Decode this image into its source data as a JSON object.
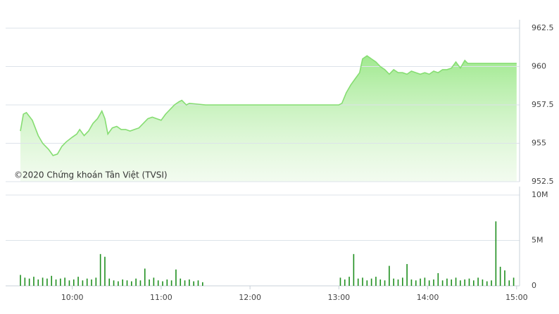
{
  "chart_data": [
    {
      "type": "area",
      "annotation": "©2020 Chứng khoán Tân Việt (TVSI)",
      "color": "#86dd72",
      "x": [
        565,
        567,
        569,
        573,
        577,
        580,
        584,
        587,
        590,
        593,
        596,
        600,
        603,
        605,
        608,
        611,
        614,
        617,
        620,
        622,
        624,
        627,
        630,
        633,
        636,
        639,
        642,
        645,
        648,
        651,
        654,
        657,
        660,
        663,
        666,
        669,
        672,
        674,
        677,
        679,
        690,
        780,
        782,
        785,
        788,
        791,
        794,
        796,
        799,
        802,
        805,
        808,
        811,
        814,
        817,
        820,
        823,
        826,
        829,
        832,
        835,
        838,
        841,
        844,
        847,
        850,
        853,
        856,
        859,
        862,
        865,
        867,
        870,
        900
      ],
      "values": [
        955.8,
        956.9,
        957.0,
        956.5,
        955.5,
        955.0,
        954.6,
        954.2,
        954.3,
        954.8,
        955.1,
        955.4,
        955.6,
        955.9,
        955.5,
        955.8,
        956.3,
        956.6,
        957.1,
        956.6,
        955.6,
        956.0,
        956.1,
        955.9,
        955.9,
        955.8,
        955.9,
        956.0,
        956.3,
        956.6,
        956.7,
        956.6,
        956.5,
        956.9,
        957.2,
        957.5,
        957.7,
        957.8,
        957.5,
        957.6,
        957.5,
        957.5,
        957.6,
        958.3,
        958.8,
        959.2,
        959.6,
        960.5,
        960.7,
        960.5,
        960.3,
        960.0,
        959.8,
        959.5,
        959.8,
        959.6,
        959.6,
        959.5,
        959.7,
        959.6,
        959.5,
        959.6,
        959.5,
        959.7,
        959.6,
        959.8,
        959.8,
        959.9,
        960.3,
        959.9,
        960.4,
        960.2,
        960.2,
        960.2
      ],
      "xlim": [
        555,
        902
      ],
      "ylim": [
        952.5,
        962.5
      ],
      "yticks": [
        952.5,
        955,
        957.5,
        960,
        962.5
      ],
      "grid": true
    },
    {
      "type": "bar",
      "color": "#1f8f1f",
      "x": [
        565,
        568,
        571,
        574,
        577,
        580,
        583,
        586,
        589,
        592,
        595,
        598,
        601,
        604,
        607,
        610,
        613,
        616,
        619,
        622,
        625,
        628,
        631,
        634,
        637,
        640,
        643,
        646,
        649,
        652,
        655,
        658,
        661,
        664,
        667,
        670,
        673,
        676,
        679,
        682,
        685,
        688,
        781,
        784,
        787,
        790,
        793,
        796,
        799,
        802,
        805,
        808,
        811,
        814,
        817,
        820,
        823,
        826,
        829,
        832,
        835,
        838,
        841,
        844,
        847,
        850,
        853,
        856,
        859,
        862,
        865,
        868,
        871,
        874,
        877,
        880,
        883,
        886,
        889,
        892,
        895,
        898
      ],
      "values": [
        1.2,
        0.9,
        0.8,
        1.0,
        0.7,
        0.9,
        0.8,
        1.1,
        0.7,
        0.8,
        0.9,
        0.6,
        0.7,
        1.0,
        0.6,
        0.8,
        0.7,
        0.9,
        3.5,
        3.2,
        0.8,
        0.6,
        0.5,
        0.7,
        0.6,
        0.5,
        0.8,
        0.6,
        1.9,
        0.7,
        0.9,
        0.6,
        0.5,
        0.7,
        0.6,
        1.8,
        0.8,
        0.6,
        0.7,
        0.5,
        0.6,
        0.4,
        0.9,
        0.7,
        1.0,
        3.5,
        0.8,
        0.9,
        0.6,
        0.8,
        1.0,
        0.7,
        0.6,
        2.2,
        0.8,
        0.7,
        0.9,
        2.4,
        0.7,
        0.6,
        0.8,
        0.9,
        0.6,
        0.7,
        1.4,
        0.6,
        0.8,
        0.7,
        0.9,
        0.6,
        0.7,
        0.8,
        0.6,
        0.9,
        0.7,
        0.5,
        0.6,
        7.1,
        2.1,
        1.7,
        0.6,
        0.9
      ],
      "xlim": [
        555,
        902
      ],
      "ylim": [
        0,
        10
      ],
      "yticks": [
        0,
        {
          "value": 5,
          "label": "5M"
        },
        {
          "value": 10,
          "label": "10M"
        }
      ],
      "xticks": [
        {
          "value": 600,
          "label": "10:00"
        },
        {
          "value": 660,
          "label": "11:00"
        },
        {
          "value": 720,
          "label": "12:00"
        },
        {
          "value": 780,
          "label": "13:00"
        },
        {
          "value": 840,
          "label": "14:00"
        },
        {
          "value": 900,
          "label": "15:00"
        }
      ],
      "grid": true
    }
  ]
}
